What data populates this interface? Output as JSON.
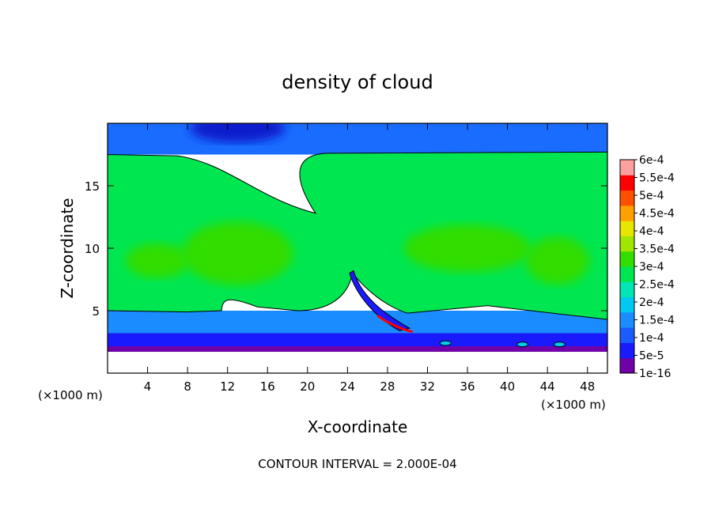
{
  "chart_data": {
    "type": "heatmap",
    "title": "density of cloud",
    "xlabel": "X-coordinate",
    "ylabel": "Z-coordinate",
    "x_unit": "(×1000 m)",
    "y_unit": "(×1000 m)",
    "xlim": [
      0,
      50
    ],
    "ylim": [
      0,
      20
    ],
    "x_ticks": [
      4,
      8,
      12,
      16,
      20,
      24,
      28,
      32,
      36,
      40,
      44,
      48
    ],
    "y_ticks": [
      5,
      10,
      15
    ],
    "footer": "CONTOUR INTERVAL = 2.000E-04",
    "colorbar": {
      "labels": [
        "1e-16",
        "5e-5",
        "1e-4",
        "1.5e-4",
        "2e-4",
        "2.5e-4",
        "3e-4",
        "3.5e-4",
        "4e-4",
        "4.5e-4",
        "5e-4",
        "5.5e-4",
        "6e-4"
      ],
      "values": [
        1e-16,
        5e-05,
        0.0001,
        0.00015,
        0.0002,
        0.00025,
        0.0003,
        0.00035,
        0.0004,
        0.00045,
        0.0005,
        0.00055,
        0.0006
      ],
      "colors": [
        "#7000a8",
        "#1a1aff",
        "#1a5cff",
        "#1a8cff",
        "#00c8f0",
        "#00e6b4",
        "#00e650",
        "#33dd00",
        "#a0e600",
        "#e6e600",
        "#ffa000",
        "#ff5000",
        "#ff0000",
        "#ffa0a0"
      ]
    },
    "field_regions": {
      "upper_cloud_band_z": [
        5,
        17.5
      ],
      "upper_cloud_value": 0.00025,
      "core_value": 0.0003,
      "clear_top_value": 5e-05,
      "cloud_base_z": 2,
      "lower_band_value": 0.0001,
      "contour_levels": [
        0.0002
      ]
    }
  }
}
